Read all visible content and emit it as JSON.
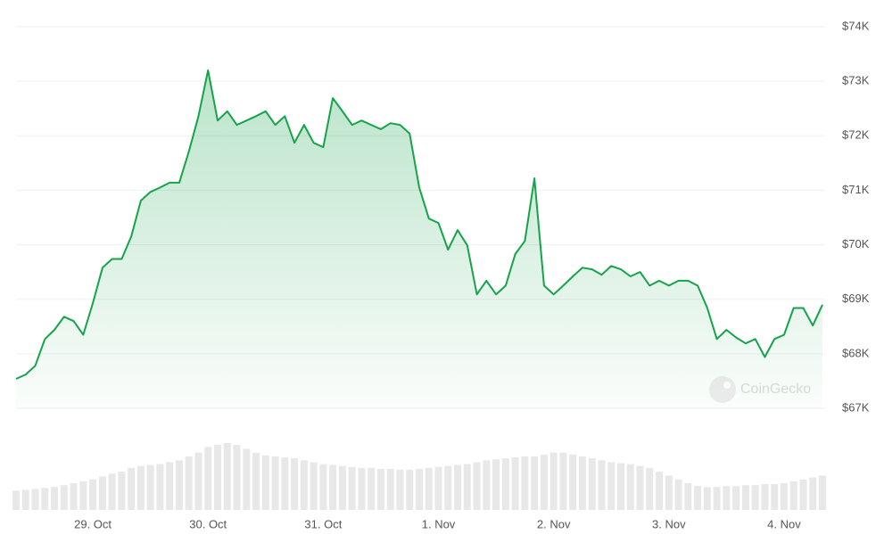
{
  "chart_data": {
    "type": "line",
    "categories": [
      null,
      null,
      null,
      null,
      null,
      null,
      null,
      null,
      "29. Oct",
      null,
      null,
      null,
      null,
      null,
      null,
      null,
      null,
      null,
      null,
      null,
      "30. Oct",
      null,
      null,
      null,
      null,
      null,
      null,
      null,
      null,
      null,
      null,
      null,
      "31. Oct",
      null,
      null,
      null,
      null,
      null,
      null,
      null,
      null,
      null,
      null,
      null,
      "1. Nov",
      null,
      null,
      null,
      null,
      null,
      null,
      null,
      null,
      null,
      null,
      null,
      "2. Nov",
      null,
      null,
      null,
      null,
      null,
      null,
      null,
      null,
      null,
      null,
      null,
      "3. Nov",
      null,
      null,
      null,
      null,
      null,
      null,
      null,
      null,
      null,
      null,
      null,
      "4. Nov",
      null,
      null,
      null,
      null
    ],
    "values": [
      67540,
      67620,
      67780,
      68270,
      68440,
      68680,
      68600,
      68350,
      68930,
      69580,
      69740,
      69740,
      70150,
      70810,
      70970,
      71050,
      71140,
      71140,
      71710,
      72360,
      73200,
      72280,
      72450,
      72200,
      72280,
      72360,
      72450,
      72200,
      72360,
      71870,
      72200,
      71870,
      71790,
      72690,
      72450,
      72200,
      72280,
      72200,
      72120,
      72230,
      72200,
      72040,
      71050,
      70480,
      70400,
      69910,
      70270,
      69990,
      69090,
      69340,
      69090,
      69250,
      69830,
      70070,
      71220,
      69250,
      69090,
      69250,
      69420,
      69580,
      69550,
      69450,
      69610,
      69550,
      69420,
      69500,
      69250,
      69340,
      69250,
      69340,
      69340,
      69250,
      68840,
      68270,
      68440,
      68300,
      68190,
      68270,
      67940,
      68270,
      68350,
      68840,
      68840,
      68520,
      68900
    ],
    "color": "#16a34a",
    "volume": {
      "color": "#e8e8e8",
      "values": [
        20,
        21,
        22,
        23,
        24,
        26,
        28,
        30,
        32,
        35,
        38,
        40,
        44,
        46,
        47,
        48,
        50,
        52,
        56,
        60,
        66,
        68,
        70,
        68,
        64,
        60,
        57,
        56,
        55,
        54,
        52,
        50,
        48,
        47,
        46,
        45,
        44,
        44,
        43,
        43,
        42,
        42,
        43,
        44,
        45,
        46,
        47,
        48,
        50,
        52,
        53,
        54,
        55,
        56,
        56,
        58,
        60,
        60,
        58,
        56,
        54,
        52,
        50,
        49,
        48,
        46,
        44,
        40,
        36,
        32,
        28,
        25,
        24,
        24,
        25,
        25,
        26,
        26,
        27,
        27,
        28,
        30,
        32,
        34,
        36
      ]
    },
    "ylim": [
      67000,
      74000
    ],
    "yticks": [
      {
        "value": 67000,
        "label": "$67K"
      },
      {
        "value": 68000,
        "label": "$68K"
      },
      {
        "value": 69000,
        "label": "$69K"
      },
      {
        "value": 70000,
        "label": "$70K"
      },
      {
        "value": 71000,
        "label": "$71K"
      },
      {
        "value": 72000,
        "label": "$72K"
      },
      {
        "value": 73000,
        "label": "$73K"
      },
      {
        "value": 74000,
        "label": "$74K"
      }
    ],
    "grid": true,
    "watermark": "CoinGecko"
  }
}
